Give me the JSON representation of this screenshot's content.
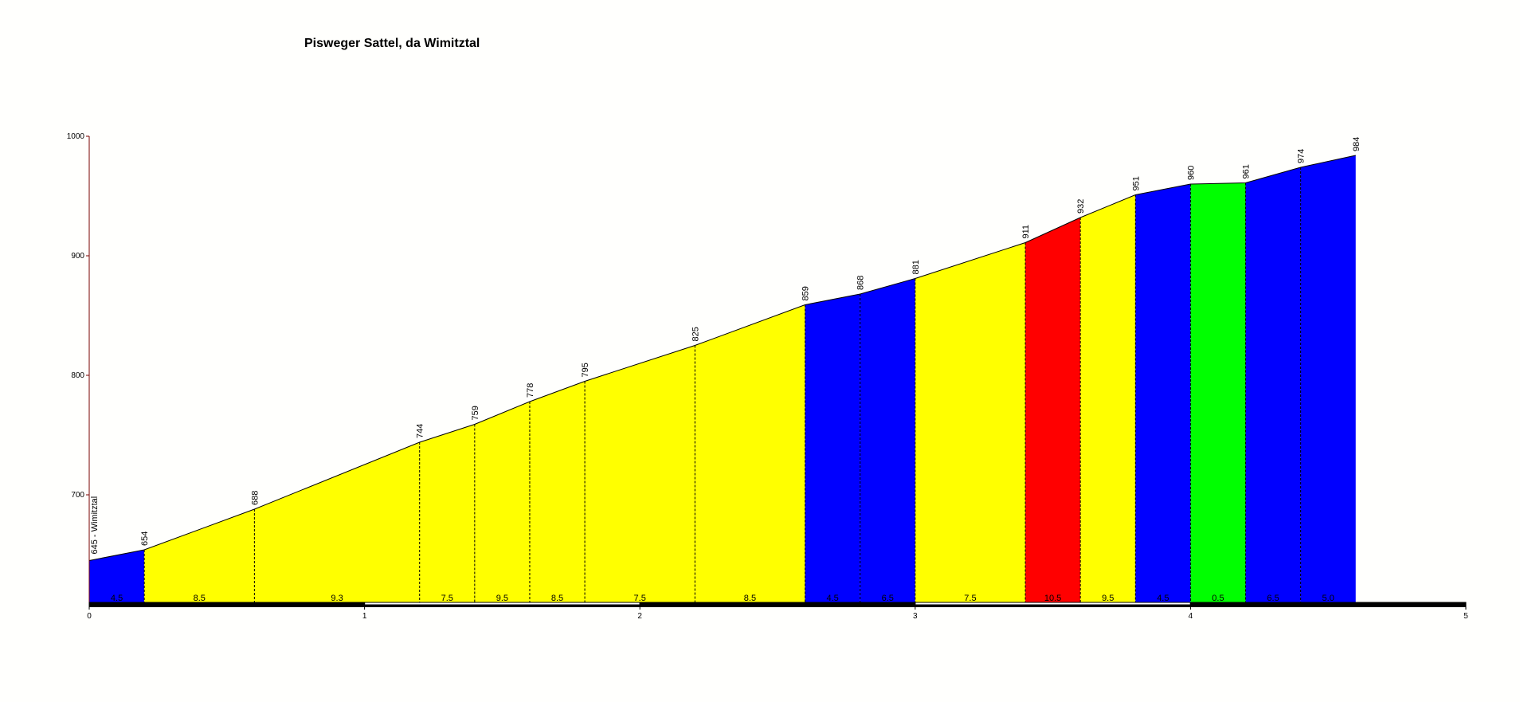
{
  "chart_data": {
    "type": "area",
    "title": "Pisweger Sattel,  da Wimitztal",
    "xlabel": "",
    "ylabel": "",
    "xlim": [
      0,
      5
    ],
    "ylim": [
      610,
      1000
    ],
    "x_ticks": [
      "0",
      "1",
      "2",
      "3",
      "4",
      "5"
    ],
    "y_ticks": [
      "700",
      "800",
      "900",
      "1000"
    ],
    "start_label": "645 - Wimitztal",
    "points": [
      {
        "x": 0.0,
        "y": 645
      },
      {
        "x": 0.2,
        "y": 654,
        "label": "654"
      },
      {
        "x": 0.6,
        "y": 688,
        "label": "688"
      },
      {
        "x": 1.2,
        "y": 744,
        "label": "744"
      },
      {
        "x": 1.4,
        "y": 759,
        "label": "759"
      },
      {
        "x": 1.6,
        "y": 778,
        "label": "778"
      },
      {
        "x": 1.8,
        "y": 795,
        "label": "795"
      },
      {
        "x": 2.2,
        "y": 825,
        "label": "825"
      },
      {
        "x": 2.6,
        "y": 859,
        "label": "859"
      },
      {
        "x": 2.8,
        "y": 868,
        "label": "868"
      },
      {
        "x": 3.0,
        "y": 881,
        "label": "881"
      },
      {
        "x": 3.4,
        "y": 911,
        "label": "911"
      },
      {
        "x": 3.6,
        "y": 932,
        "label": "932"
      },
      {
        "x": 3.8,
        "y": 951,
        "label": "951"
      },
      {
        "x": 4.0,
        "y": 960,
        "label": "960"
      },
      {
        "x": 4.2,
        "y": 961,
        "label": "961"
      },
      {
        "x": 4.4,
        "y": 974,
        "label": "974"
      },
      {
        "x": 4.6,
        "y": 984,
        "label": "984"
      }
    ],
    "segments": [
      {
        "from": 0.0,
        "to": 0.2,
        "gradient": "4.5",
        "color": "#0000ff"
      },
      {
        "from": 0.2,
        "to": 0.6,
        "gradient": "8.5",
        "color": "#ffff00"
      },
      {
        "from": 0.6,
        "to": 1.2,
        "gradient": "9.3",
        "color": "#ffff00"
      },
      {
        "from": 1.2,
        "to": 1.4,
        "gradient": "7.5",
        "color": "#ffff00"
      },
      {
        "from": 1.4,
        "to": 1.6,
        "gradient": "9.5",
        "color": "#ffff00"
      },
      {
        "from": 1.6,
        "to": 1.8,
        "gradient": "8.5",
        "color": "#ffff00"
      },
      {
        "from": 1.8,
        "to": 2.2,
        "gradient": "7.5",
        "color": "#ffff00"
      },
      {
        "from": 2.2,
        "to": 2.6,
        "gradient": "8.5",
        "color": "#ffff00"
      },
      {
        "from": 2.6,
        "to": 2.8,
        "gradient": "4.5",
        "color": "#0000ff"
      },
      {
        "from": 2.8,
        "to": 3.0,
        "gradient": "6.5",
        "color": "#0000ff"
      },
      {
        "from": 3.0,
        "to": 3.4,
        "gradient": "7.5",
        "color": "#ffff00"
      },
      {
        "from": 3.4,
        "to": 3.6,
        "gradient": "10.5",
        "color": "#ff0000"
      },
      {
        "from": 3.6,
        "to": 3.8,
        "gradient": "9.5",
        "color": "#ffff00"
      },
      {
        "from": 3.8,
        "to": 4.0,
        "gradient": "4.5",
        "color": "#0000ff"
      },
      {
        "from": 4.0,
        "to": 4.2,
        "gradient": "0.5",
        "color": "#00ff00"
      },
      {
        "from": 4.2,
        "to": 4.4,
        "gradient": "6.5",
        "color": "#0000ff"
      },
      {
        "from": 4.4,
        "to": 4.6,
        "gradient": "5.0",
        "color": "#0000ff"
      }
    ],
    "grid": false
  }
}
